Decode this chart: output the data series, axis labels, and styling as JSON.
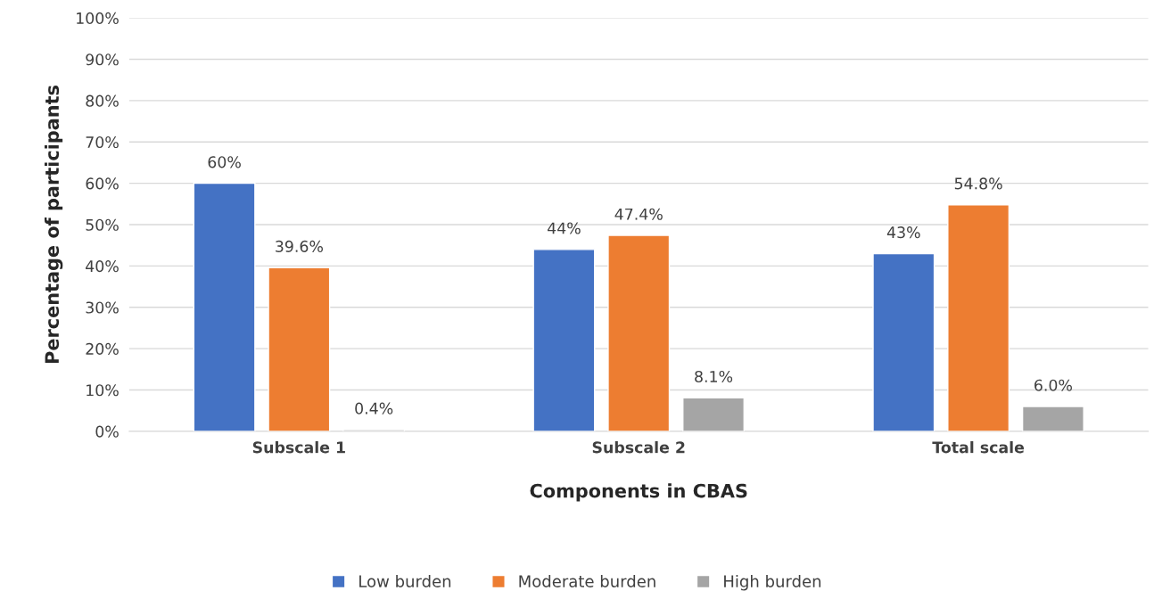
{
  "chart_data": {
    "type": "bar",
    "xlabel": "Components in CBAS",
    "ylabel": "Percentage of participants",
    "categories": [
      "Subscale 1",
      "Subscale 2",
      "Total scale"
    ],
    "series": [
      {
        "name": "Low burden",
        "color": "#4472c4",
        "values": [
          60,
          44,
          43
        ],
        "value_labels": [
          "60%",
          "44%",
          "43%"
        ]
      },
      {
        "name": "Moderate burden",
        "color": "#ed7d31",
        "values": [
          39.6,
          47.4,
          54.8
        ],
        "value_labels": [
          "39.6%",
          "47.4%",
          "54.8%"
        ]
      },
      {
        "name": "High burden",
        "color": "#a5a5a5",
        "values": [
          0.4,
          8.1,
          6.0
        ],
        "value_labels": [
          "0.4%",
          "8.1%",
          "6.0%"
        ]
      }
    ],
    "ylim": [
      0,
      100
    ],
    "yticks": [
      {
        "value": 0,
        "label": "0%"
      },
      {
        "value": 10,
        "label": "10%"
      },
      {
        "value": 20,
        "label": "20%"
      },
      {
        "value": 30,
        "label": "30%"
      },
      {
        "value": 40,
        "label": "40%"
      },
      {
        "value": 50,
        "label": "50%"
      },
      {
        "value": 60,
        "label": "60%"
      },
      {
        "value": 70,
        "label": "70%"
      },
      {
        "value": 80,
        "label": "80%"
      },
      {
        "value": 90,
        "label": "90%"
      },
      {
        "value": 100,
        "label": "100%"
      }
    ],
    "grid": "y",
    "legend": "bottom"
  }
}
